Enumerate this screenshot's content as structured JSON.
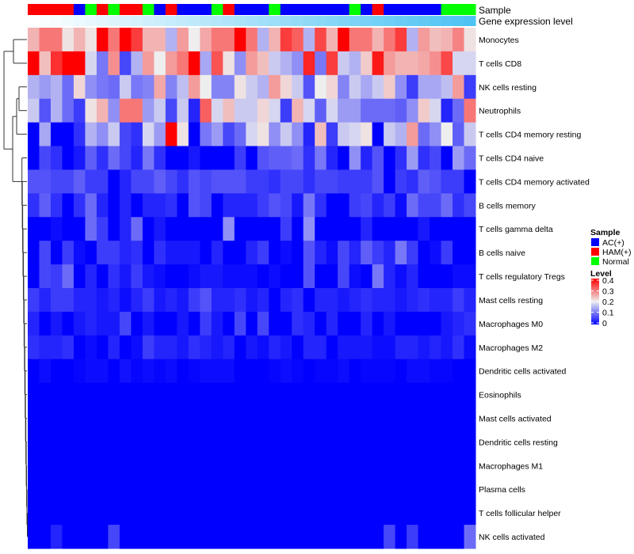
{
  "chart_data": {
    "type": "heatmap",
    "title": "",
    "annotation_labels": {
      "sample": "Sample",
      "gene_expression": "Gene expression level"
    },
    "rows": [
      "Monocytes",
      "T cells CD8",
      "NK cells resting",
      "Neutrophils",
      "T cells CD4 memory resting",
      "T cells CD4 naive",
      "T cells CD4 memory activated",
      "B cells memory",
      "T cells gamma delta",
      "B cells naive",
      "T cells regulatory  Tregs",
      "Mast cells resting",
      "Macrophages M0",
      "Macrophages M2",
      "Dendritic cells activated",
      "Eosinophils",
      "Mast cells activated",
      "Dendritic cells resting",
      "Macrophages M1",
      "Plasma cells",
      "T cells follicular helper",
      "NK cells activated"
    ],
    "sample_groups": [
      "HAM(+)",
      "HAM(+)",
      "HAM(+)",
      "HAM(+)",
      "AC(+)",
      "Normal",
      "HAM(+)",
      "Normal",
      "HAM(+)",
      "HAM(+)",
      "Normal",
      "AC(+)",
      "HAM(+)",
      "AC(+)",
      "AC(+)",
      "AC(+)",
      "Normal",
      "HAM(+)",
      "AC(+)",
      "AC(+)",
      "AC(+)",
      "Normal",
      "AC(+)",
      "AC(+)",
      "AC(+)",
      "AC(+)",
      "AC(+)",
      "AC(+)",
      "Normal",
      "AC(+)",
      "HAM(+)",
      "AC(+)",
      "AC(+)",
      "AC(+)",
      "AC(+)",
      "AC(+)",
      "Normal",
      "Normal",
      "Normal"
    ],
    "gene_expression_range": [
      0,
      1
    ],
    "values": [
      [
        0.25,
        0.3,
        0.3,
        0.21,
        0.25,
        0.21,
        0.4,
        0.3,
        0.4,
        0.35,
        0.25,
        0.25,
        0.15,
        0.27,
        0.2,
        0.26,
        0.3,
        0.3,
        0.4,
        0.3,
        0.15,
        0.25,
        0.35,
        0.32,
        0.15,
        0.34,
        0.25,
        0.4,
        0.3,
        0.3,
        0.25,
        0.3,
        0.35,
        0.15,
        0.27,
        0.24,
        0.25,
        0.29,
        0.21
      ],
      [
        0.4,
        0.24,
        0.36,
        0.4,
        0.4,
        0.18,
        0.1,
        0.28,
        0.06,
        0.15,
        0.27,
        0.2,
        0.27,
        0.3,
        0.4,
        0.14,
        0.33,
        0.21,
        0.12,
        0.27,
        0.24,
        0.17,
        0.15,
        0.12,
        0.37,
        0.1,
        0.35,
        0.17,
        0.15,
        0.23,
        0.38,
        0.27,
        0.25,
        0.25,
        0.26,
        0.28,
        0.34,
        0.18,
        0.18
      ],
      [
        0.15,
        0.13,
        0.15,
        0.09,
        0.22,
        0.12,
        0.1,
        0.09,
        0.17,
        0.1,
        0.11,
        0.26,
        0.11,
        0.16,
        0.27,
        0.2,
        0.11,
        0.11,
        0.21,
        0.17,
        0.15,
        0.27,
        0.22,
        0.17,
        0.07,
        0.2,
        0.22,
        0.11,
        0.17,
        0.14,
        0.17,
        0.23,
        0.12,
        0.05,
        0.14,
        0.14,
        0.16,
        0.27,
        0.05
      ],
      [
        0.17,
        0.07,
        0.15,
        0.09,
        0.05,
        0.21,
        0.25,
        0.12,
        0.3,
        0.3,
        0.13,
        0.17,
        0.06,
        0.17,
        0.03,
        0.32,
        0.18,
        0.24,
        0.17,
        0.17,
        0.22,
        0.18,
        0.05,
        0.25,
        0.18,
        0.08,
        0.18,
        0.13,
        0.13,
        0.09,
        0.09,
        0.09,
        0.08,
        0.12,
        0.23,
        0.18,
        0.03,
        0.09,
        0.3
      ],
      [
        0,
        0.14,
        0,
        0,
        0.04,
        0.15,
        0.12,
        0.17,
        0.06,
        0.04,
        0.18,
        0.13,
        0.4,
        0.21,
        0,
        0.1,
        0.13,
        0.06,
        0.09,
        0.18,
        0.21,
        0.12,
        0.17,
        0.12,
        0.03,
        0.24,
        0.05,
        0.17,
        0.18,
        0.21,
        0,
        0.17,
        0.15,
        0.27,
        0.09,
        0.12,
        0.2,
        0.08,
        0.17
      ],
      [
        0,
        0.06,
        0.04,
        0,
        0.02,
        0.08,
        0.04,
        0.09,
        0.06,
        0.03,
        0.1,
        0.04,
        0,
        0,
        0.02,
        0,
        0,
        0,
        0.05,
        0,
        0.07,
        0.08,
        0.08,
        0.09,
        0.04,
        0.1,
        0.03,
        0,
        0.12,
        0.03,
        0.07,
        0,
        0.04,
        0.13,
        0.04,
        0.06,
        0,
        0.13,
        0.09
      ],
      [
        0.07,
        0.07,
        0.06,
        0.06,
        0.08,
        0.05,
        0.05,
        0,
        0.03,
        0.06,
        0.06,
        0.08,
        0.06,
        0.04,
        0.07,
        0.06,
        0.07,
        0.07,
        0.07,
        0.05,
        0.05,
        0.04,
        0.06,
        0.06,
        0.04,
        0.06,
        0.06,
        0.05,
        0.05,
        0.05,
        0.07,
        0,
        0.05,
        0.04,
        0.08,
        0.07,
        0.05,
        0.05,
        0
      ],
      [
        0.04,
        0.08,
        0.04,
        0,
        0.04,
        0.09,
        0.03,
        0,
        0.03,
        0,
        0.03,
        0.03,
        0.04,
        0,
        0.07,
        0.06,
        0,
        0.03,
        0.03,
        0.03,
        0.05,
        0.07,
        0.06,
        0.02,
        0.1,
        0.04,
        0,
        0,
        0.05,
        0.06,
        0.03,
        0.05,
        0.01,
        0.09,
        0.06,
        0.06,
        0.09,
        0.04,
        0.06
      ],
      [
        0,
        0,
        0.01,
        0,
        0,
        0.09,
        0.05,
        0,
        0.03,
        0.09,
        0,
        0.02,
        0,
        0,
        0,
        0,
        0,
        0.12,
        0,
        0,
        0,
        0,
        0.05,
        0,
        0.12,
        0,
        0,
        0,
        0,
        0.03,
        0,
        0,
        0,
        0,
        0.02,
        0,
        0,
        0,
        0
      ],
      [
        0,
        0.06,
        0,
        0.05,
        0.01,
        0,
        0.05,
        0.05,
        0.03,
        0.04,
        0,
        0.04,
        0.02,
        0.02,
        0.02,
        0,
        0.03,
        0,
        0,
        0.03,
        0.05,
        0,
        0.01,
        0,
        0.07,
        0.03,
        0.01,
        0.06,
        0.03,
        0.08,
        0.05,
        0.03,
        0.1,
        0.05,
        0,
        0.01,
        0.05,
        0,
        0
      ],
      [
        0,
        0.06,
        0.05,
        0.09,
        0,
        0.03,
        0,
        0.04,
        0.02,
        0.05,
        0.02,
        0.01,
        0,
        0,
        0.01,
        0.02,
        0.02,
        0.01,
        0.01,
        0.01,
        0,
        0.01,
        0,
        0,
        0.07,
        0,
        0,
        0.06,
        0.01,
        0,
        0.1,
        0.03,
        0.01,
        0.03,
        0,
        0,
        0,
        0.01,
        0.01
      ],
      [
        0.05,
        0.03,
        0.05,
        0.05,
        0.03,
        0.03,
        0.02,
        0.03,
        0.01,
        0.03,
        0.05,
        0.02,
        0.03,
        0.02,
        0.05,
        0.07,
        0.03,
        0.03,
        0.04,
        0.02,
        0.03,
        0,
        0.03,
        0.04,
        0,
        0.03,
        0.03,
        0.02,
        0.03,
        0.04,
        0.03,
        0.03,
        0.02,
        0.03,
        0.04,
        0.03,
        0.03,
        0.05,
        0.03
      ],
      [
        0.03,
        0,
        0.02,
        0,
        0.02,
        0.03,
        0.02,
        0.02,
        0.06,
        0,
        0.02,
        0,
        0,
        0.02,
        0,
        0.05,
        0.02,
        0,
        0.06,
        0,
        0.06,
        0,
        0,
        0.04,
        0.03,
        0,
        0.03,
        0,
        0,
        0.03,
        0,
        0.02,
        0,
        0,
        0,
        0,
        0.02,
        0.03,
        0.04
      ],
      [
        0.04,
        0.03,
        0.03,
        0.04,
        0,
        0.01,
        0,
        0.03,
        0,
        0.01,
        0.05,
        0.03,
        0.03,
        0.02,
        0.04,
        0.03,
        0.02,
        0.03,
        0,
        0.02,
        0.01,
        0.03,
        0.02,
        0,
        0.03,
        0.03,
        0,
        0.02,
        0.02,
        0.02,
        0.01,
        0.01,
        0.03,
        0.03,
        0.02,
        0.03,
        0.02,
        0.04,
        0.01
      ],
      [
        0,
        0.01,
        0,
        0,
        0.005,
        0.01,
        0.01,
        0,
        0.015,
        0.005,
        0.01,
        0.005,
        0.01,
        0,
        0.005,
        0.01,
        0.01,
        0.01,
        0,
        0,
        0,
        0.005,
        0.01,
        0.005,
        0,
        0.005,
        0.005,
        0.01,
        0,
        0.005,
        0.005,
        0.005,
        0,
        0.01,
        0.01,
        0.005,
        0.005,
        0,
        0
      ],
      [
        0,
        0,
        0,
        0,
        0,
        0,
        0,
        0,
        0,
        0,
        0,
        0,
        0,
        0,
        0,
        0,
        0,
        0,
        0,
        0,
        0,
        0,
        0,
        0,
        0,
        0,
        0,
        0,
        0,
        0,
        0,
        0,
        0,
        0,
        0,
        0,
        0,
        0,
        0
      ],
      [
        0,
        0,
        0,
        0,
        0,
        0,
        0,
        0,
        0,
        0,
        0,
        0,
        0,
        0,
        0,
        0,
        0,
        0,
        0,
        0,
        0,
        0,
        0,
        0,
        0,
        0,
        0,
        0,
        0,
        0,
        0,
        0,
        0,
        0,
        0,
        0,
        0,
        0,
        0
      ],
      [
        0,
        0,
        0,
        0,
        0,
        0,
        0,
        0,
        0,
        0,
        0,
        0,
        0,
        0,
        0,
        0,
        0,
        0,
        0,
        0,
        0,
        0,
        0,
        0,
        0,
        0,
        0,
        0,
        0,
        0,
        0,
        0,
        0,
        0,
        0,
        0,
        0,
        0,
        0
      ],
      [
        0,
        0,
        0,
        0,
        0,
        0,
        0,
        0,
        0,
        0,
        0,
        0,
        0,
        0,
        0,
        0,
        0,
        0,
        0,
        0,
        0,
        0,
        0,
        0,
        0,
        0,
        0,
        0,
        0,
        0,
        0,
        0,
        0,
        0,
        0,
        0,
        0,
        0,
        0
      ],
      [
        0,
        0,
        0,
        0,
        0,
        0,
        0,
        0,
        0,
        0,
        0,
        0,
        0,
        0,
        0,
        0,
        0,
        0,
        0,
        0,
        0,
        0,
        0,
        0,
        0,
        0,
        0,
        0,
        0,
        0,
        0,
        0,
        0,
        0,
        0,
        0,
        0,
        0,
        0
      ],
      [
        0,
        0,
        0,
        0,
        0,
        0,
        0,
        0,
        0,
        0,
        0,
        0,
        0,
        0,
        0,
        0,
        0,
        0,
        0,
        0,
        0,
        0,
        0,
        0,
        0,
        0,
        0,
        0,
        0,
        0,
        0,
        0,
        0,
        0,
        0,
        0,
        0,
        0,
        0
      ],
      [
        0,
        0,
        0.03,
        0,
        0,
        0,
        0,
        0.06,
        0,
        0,
        0,
        0,
        0,
        0,
        0,
        0,
        0,
        0,
        0,
        0,
        0,
        0,
        0,
        0,
        0,
        0,
        0,
        0,
        0,
        0,
        0,
        0.06,
        0,
        0.05,
        0,
        0,
        0,
        0,
        0.09
      ]
    ],
    "color_scale": {
      "low": "#0000FF",
      "mid": "#EEEEEE",
      "high": "#FF0000",
      "range": [
        0,
        0.4
      ]
    },
    "gene_expression_colors": {
      "low": "#FFFFFF",
      "high": "#4EC3F3"
    },
    "legend": {
      "placement": "right",
      "sample_title": "Sample",
      "sample_items": [
        {
          "label": "AC(+)",
          "color": "#0000FF"
        },
        {
          "label": "HAM(+)",
          "color": "#FF0000"
        },
        {
          "label": "Normal",
          "color": "#00FF00"
        }
      ],
      "level_title": "Level",
      "level_ticks": [
        "0.4",
        "0.3",
        "0.2",
        "0.1",
        "0"
      ]
    }
  }
}
